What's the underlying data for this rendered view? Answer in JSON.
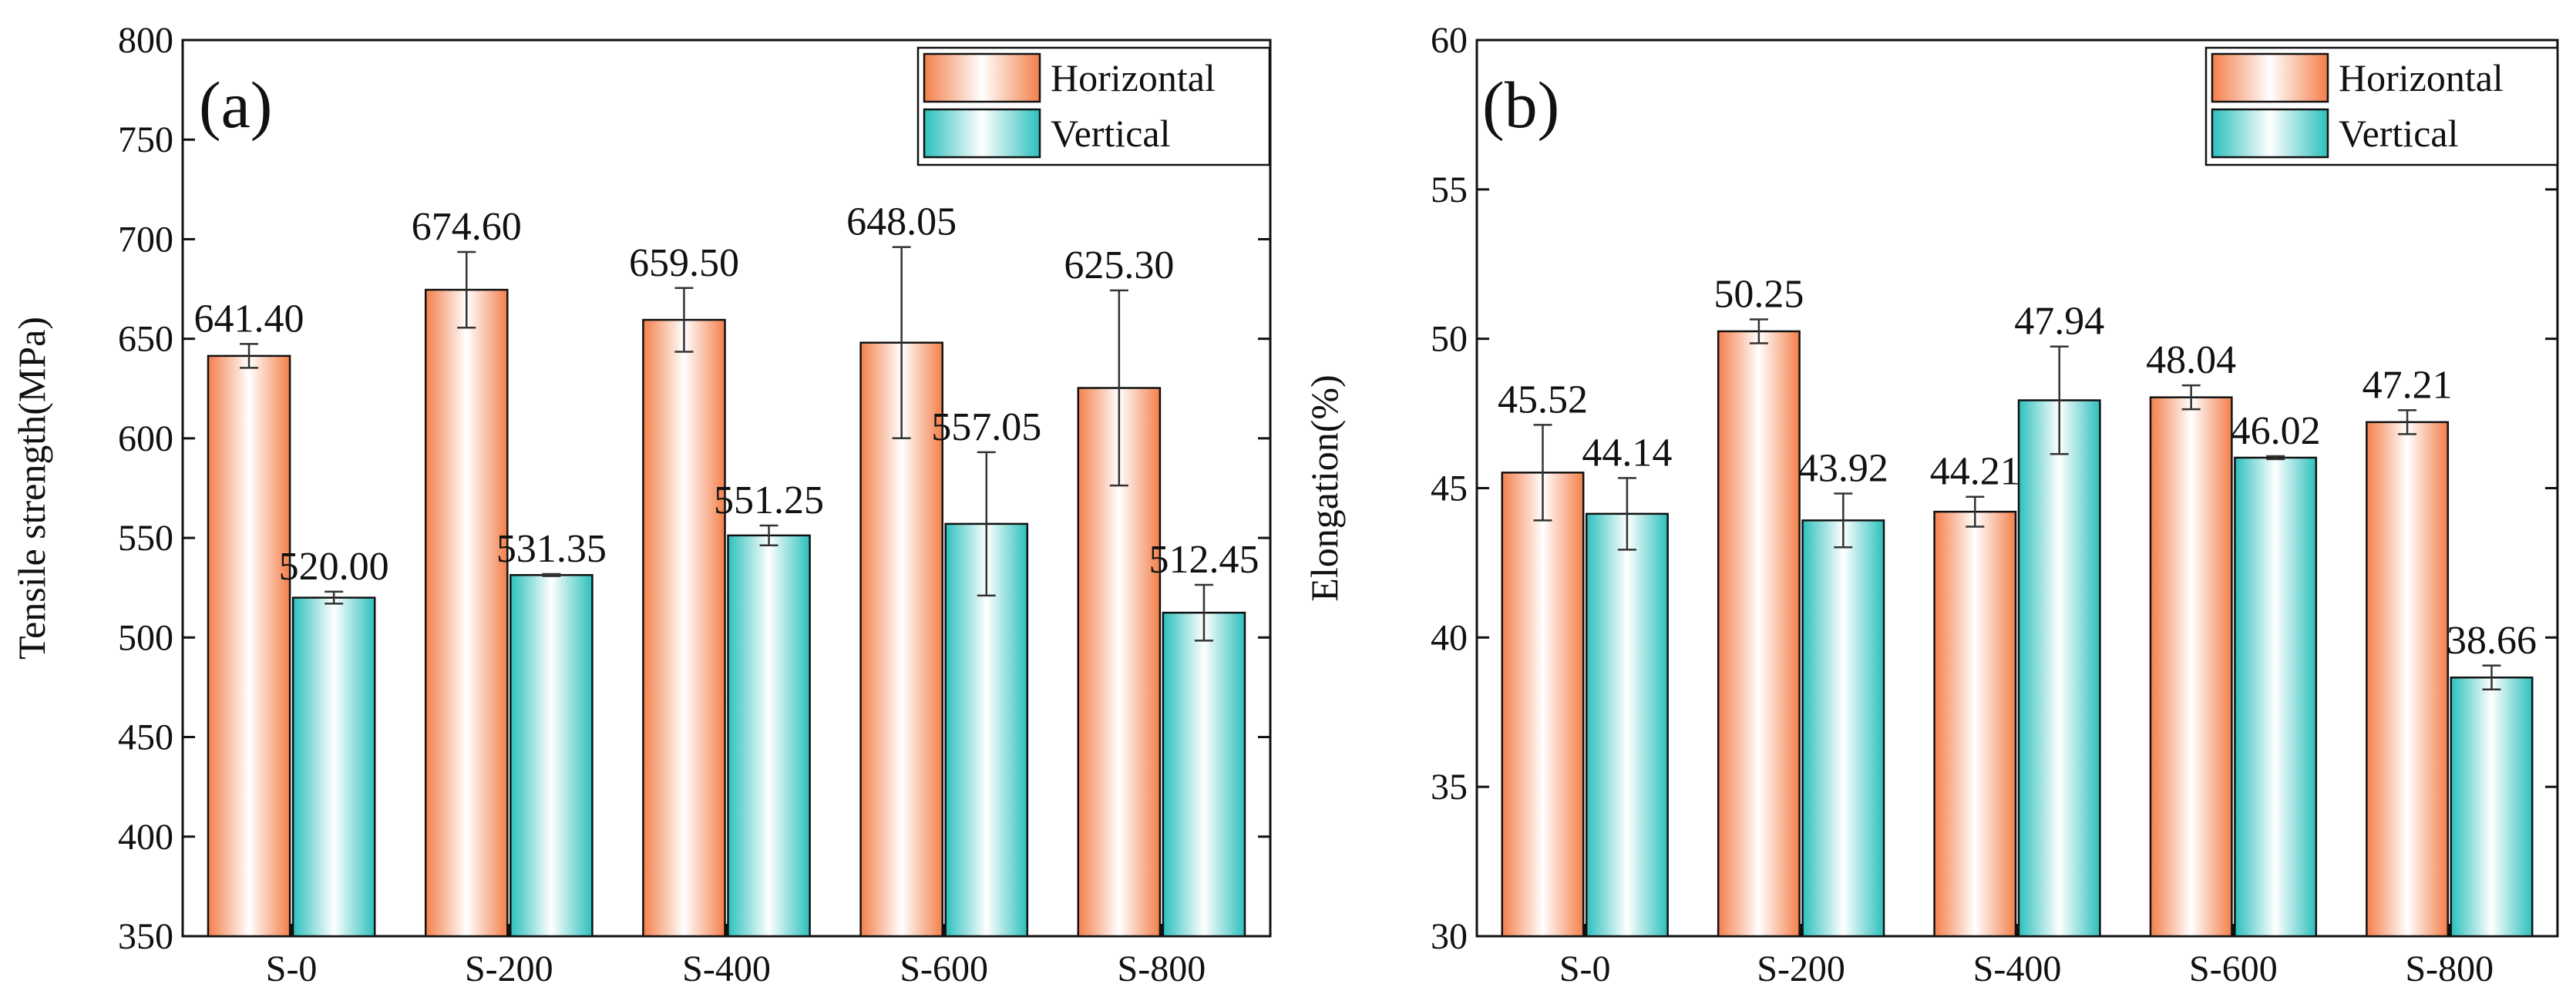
{
  "colors": {
    "horizontal": "#F47F4A",
    "vertical": "#2CC0BD",
    "axis": "#111111",
    "error_bar": "#333333"
  },
  "chart_data": [
    {
      "panel": "(a)",
      "type": "bar",
      "categories": [
        "S-0",
        "S-200",
        "S-400",
        "S-600",
        "S-800"
      ],
      "ylabel": "Tensile strength(MPa)",
      "xlabel": "",
      "ylim": [
        350,
        800
      ],
      "yticks": [
        350,
        400,
        450,
        500,
        550,
        600,
        650,
        700,
        750,
        800
      ],
      "legend_position": "top-right",
      "series": [
        {
          "name": "Horizontal",
          "color_key": "horizontal",
          "values": [
            641.4,
            674.6,
            659.5,
            648.05,
            625.3
          ],
          "labels": [
            "641.40",
            "674.60",
            "659.50",
            "648.05",
            "625.30"
          ],
          "errors": [
            6,
            19,
            16,
            48,
            49
          ]
        },
        {
          "name": "Vertical",
          "color_key": "vertical",
          "values": [
            520.0,
            531.35,
            551.25,
            557.05,
            512.45
          ],
          "labels": [
            "520.00",
            "531.35",
            "551.25",
            "557.05",
            "512.45"
          ],
          "errors": [
            3,
            0.5,
            5,
            36,
            14
          ]
        }
      ]
    },
    {
      "panel": "(b)",
      "type": "bar",
      "categories": [
        "S-0",
        "S-200",
        "S-400",
        "S-600",
        "S-800"
      ],
      "ylabel": "Elongation(%)",
      "xlabel": "",
      "ylim": [
        30,
        60
      ],
      "yticks": [
        30,
        35,
        40,
        45,
        50,
        55,
        60
      ],
      "legend_position": "top-right",
      "series": [
        {
          "name": "Horizontal",
          "color_key": "horizontal",
          "values": [
            45.52,
            50.25,
            44.21,
            48.04,
            47.21
          ],
          "labels": [
            "45.52",
            "50.25",
            "44.21",
            "48.04",
            "47.21"
          ],
          "errors": [
            1.6,
            0.4,
            0.5,
            0.4,
            0.4
          ]
        },
        {
          "name": "Vertical",
          "color_key": "vertical",
          "values": [
            44.14,
            43.92,
            47.94,
            46.02,
            38.66
          ],
          "labels": [
            "44.14",
            "43.92",
            "47.94",
            "46.02",
            "38.66"
          ],
          "errors": [
            1.2,
            0.9,
            1.8,
            0.05,
            0.4
          ]
        }
      ]
    }
  ]
}
